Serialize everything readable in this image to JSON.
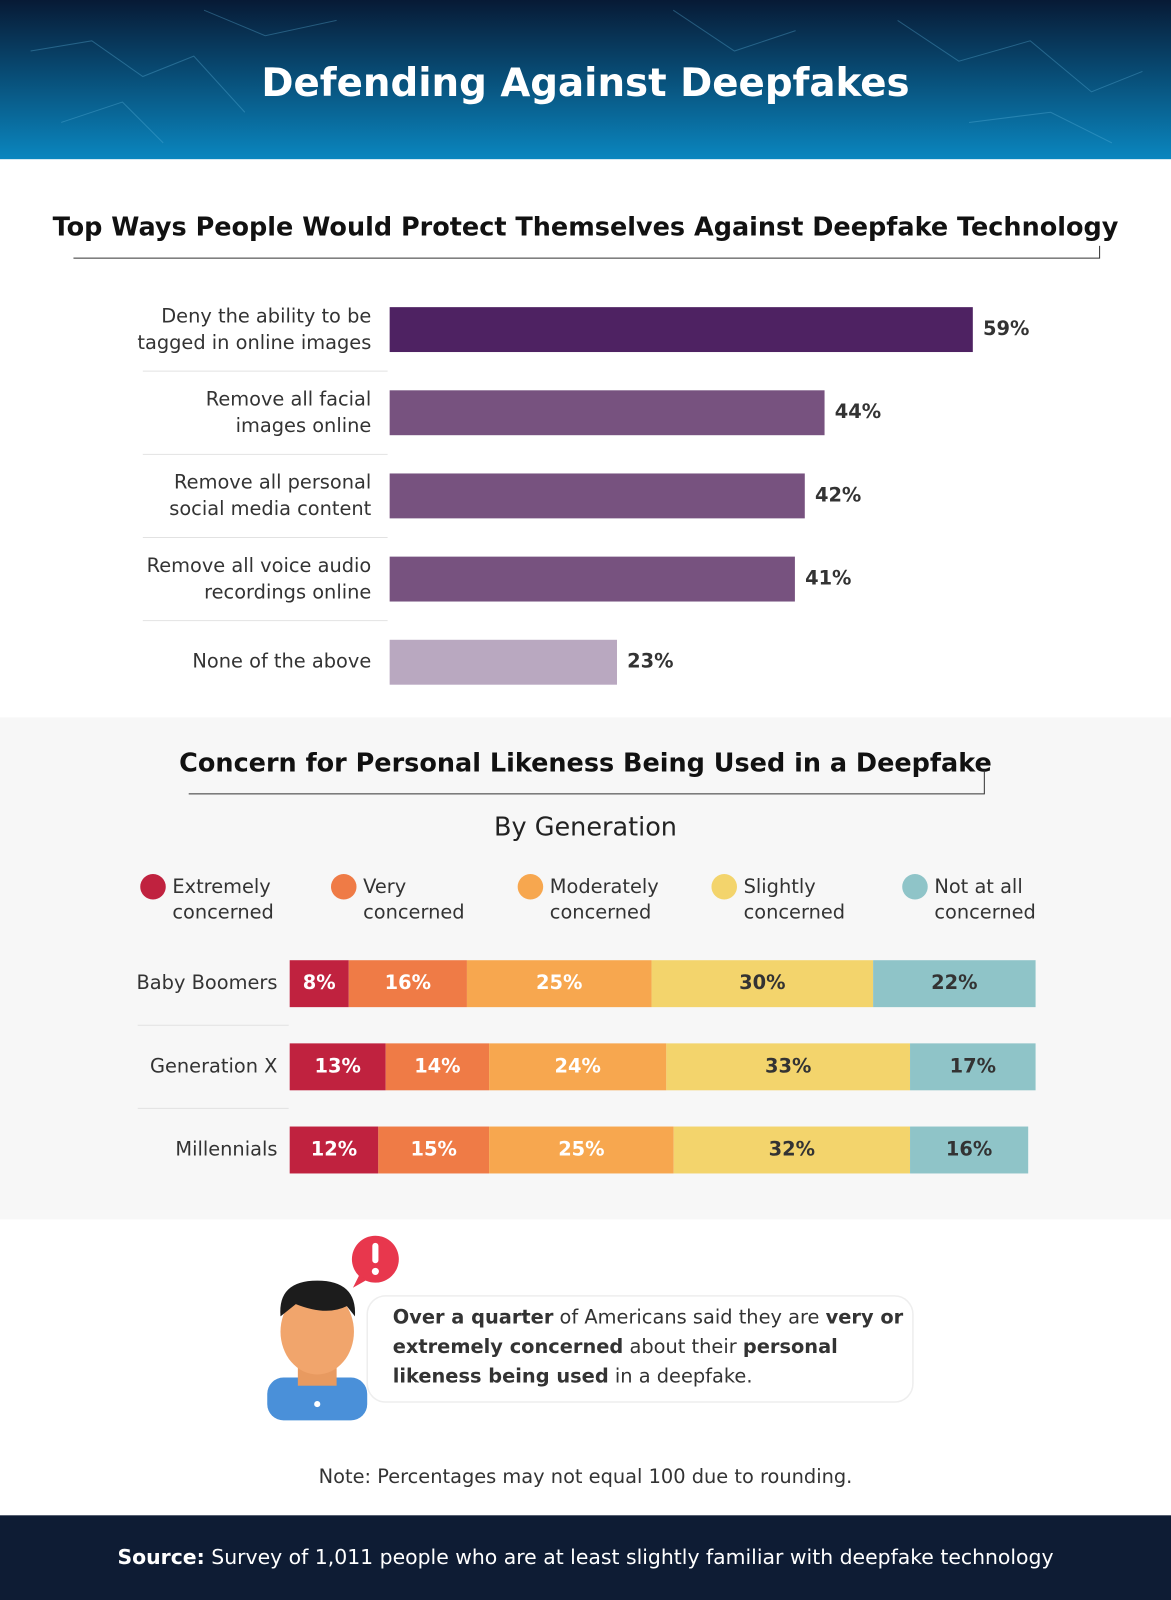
{
  "header": {
    "title": "Defending Against Deepfakes"
  },
  "chart_data": [
    {
      "type": "hbar",
      "title": "Top Ways People Would Protect Themselves Against Deepfake Technology",
      "categories": [
        "Deny the ability to be\ntagged in online images",
        "Remove all facial\nimages online",
        "Remove all personal\nsocial media content",
        "Remove all voice audio\nrecordings online",
        "None of the above"
      ],
      "values": [
        59,
        44,
        42,
        41,
        23
      ],
      "value_labels": [
        "59%",
        "44%",
        "42%",
        "41%",
        "23%"
      ],
      "colors": [
        "#4e2262",
        "#77527f",
        "#77527f",
        "#77527f",
        "#b9a8c0"
      ]
    },
    {
      "type": "stacked-hbar",
      "title": "Concern for Personal Likeness Being Used in a Deepfake",
      "subtitle": "By Generation",
      "categories": [
        "Baby Boomers",
        "Generation X",
        "Millennials"
      ],
      "series": [
        {
          "name": "Extremely\nconcerned",
          "color": "#c0223f",
          "values": [
            8,
            13,
            12
          ],
          "value_labels": [
            "8%",
            "13%",
            "12%"
          ]
        },
        {
          "name": "Very\nconcerned",
          "color": "#ef7b46",
          "values": [
            16,
            14,
            15
          ],
          "value_labels": [
            "16%",
            "14%",
            "15%"
          ]
        },
        {
          "name": "Moderately\nconcerned",
          "color": "#f7a74f",
          "values": [
            25,
            24,
            25
          ],
          "value_labels": [
            "25%",
            "24%",
            "25%"
          ]
        },
        {
          "name": "Slightly\nconcerned",
          "color": "#f3d46c",
          "values": [
            30,
            33,
            32
          ],
          "value_labels": [
            "30%",
            "33%",
            "32%"
          ]
        },
        {
          "name": "Not at all\nconcerned",
          "color": "#8fc4c8",
          "values": [
            22,
            17,
            16
          ],
          "value_labels": [
            "22%",
            "17%",
            "16%"
          ]
        }
      ]
    }
  ],
  "callout": {
    "runs": [
      {
        "text": "Over a quarter",
        "bold": true
      },
      {
        "text": " of Americans said they are ",
        "bold": false
      },
      {
        "text": "very or extremely concerned",
        "bold": true
      },
      {
        "text": " about their ",
        "bold": false
      },
      {
        "text": "personal likeness being used",
        "bold": true
      },
      {
        "text": " in a deepfake.",
        "bold": false
      }
    ]
  },
  "note": "Note: Percentages may not equal 100 due to rounding.",
  "source": {
    "label": "Source:",
    "text": " Survey of 1,011 people who are at least slightly familiar with deepfake technology"
  }
}
